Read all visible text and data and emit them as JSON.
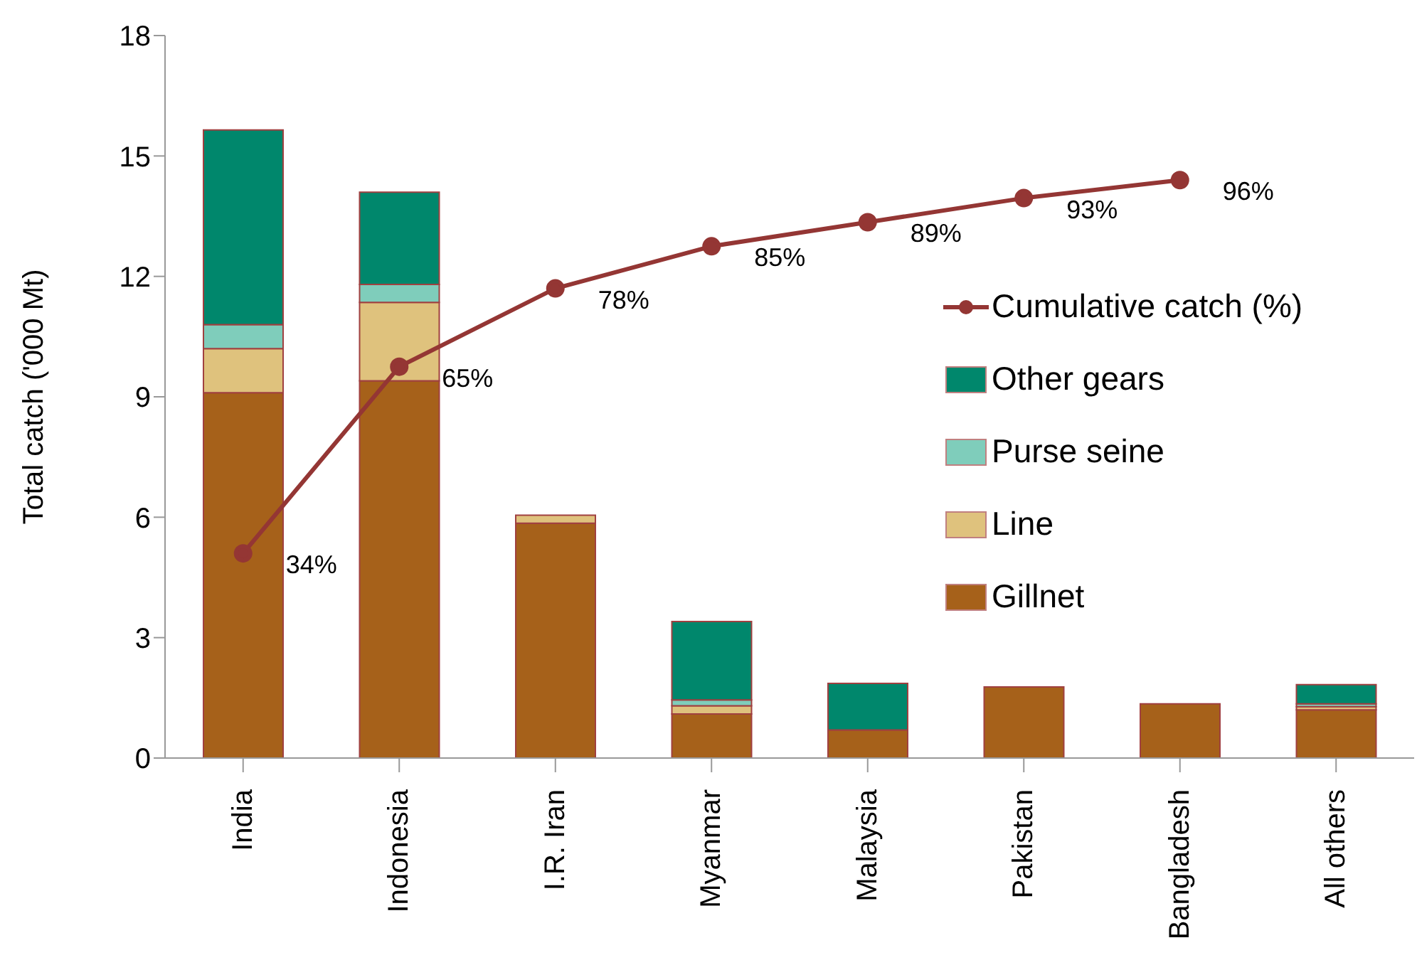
{
  "chart_data": {
    "type": "bar",
    "stacked": true,
    "ylabel": "Total catch ('000 Mt)",
    "categories": [
      "India",
      "Indonesia",
      "I.R. Iran",
      "Myanmar",
      "Malaysia",
      "Pakistan",
      "Bangladesh",
      "All others"
    ],
    "series": [
      {
        "name": "Gillnet",
        "color": "#a6611a",
        "values": [
          9.1,
          9.4,
          5.85,
          1.1,
          0.7,
          1.77,
          1.35,
          1.2
        ]
      },
      {
        "name": "Line",
        "color": "#dfc27d",
        "values": [
          1.1,
          1.95,
          0.2,
          0.2,
          0,
          0,
          0,
          0.08
        ]
      },
      {
        "name": "Purse seine",
        "color": "#7fcdbb",
        "values": [
          0.6,
          0.45,
          0,
          0.15,
          0,
          0,
          0,
          0.07
        ]
      },
      {
        "name": "Other gears",
        "color": "#00876c",
        "values": [
          4.85,
          2.3,
          0,
          1.95,
          1.16,
          0,
          0,
          0.48
        ]
      },
      {
        "name": "Cumulative catch (%)",
        "type": "line",
        "axis": "y2",
        "color": "#943634",
        "values": [
          34,
          65,
          78,
          85,
          89,
          93,
          96,
          null
        ],
        "value_labels": [
          "34%",
          "65%",
          "78%",
          "85%",
          "89%",
          "93%",
          "96%",
          null
        ]
      }
    ],
    "ylim": [
      0,
      18
    ],
    "yticks": [
      0,
      3,
      6,
      9,
      12,
      15,
      18
    ],
    "y2lim": [
      0,
      120
    ],
    "legend": "right",
    "marker": "circle",
    "line_style": "solid"
  }
}
